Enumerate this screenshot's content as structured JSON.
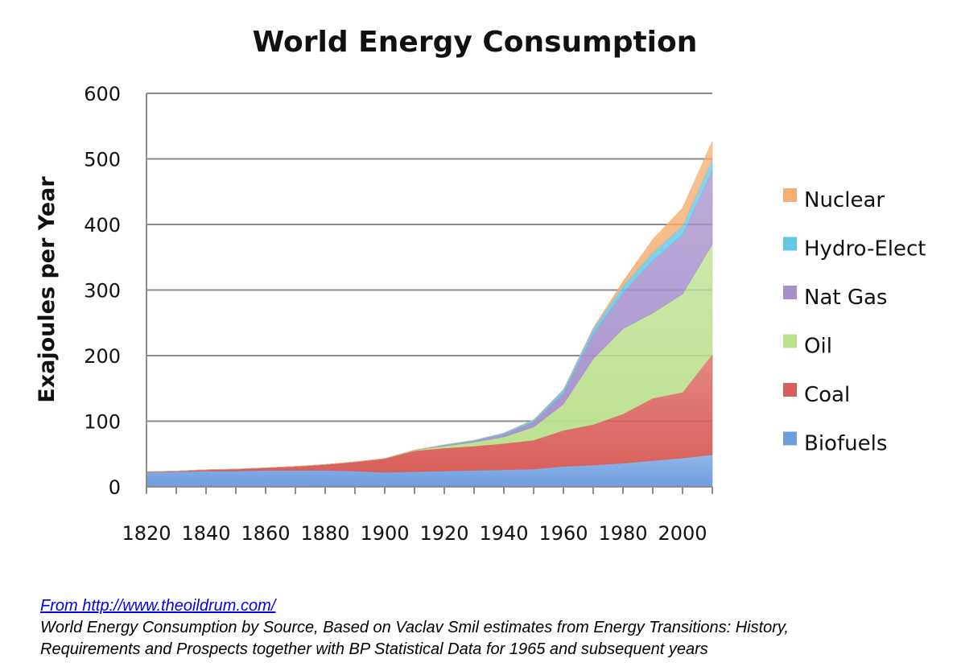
{
  "chart_data": {
    "type": "area",
    "stacked": true,
    "title": "World Energy Consumption",
    "xlabel": "",
    "ylabel": "Exajoules per Year",
    "xlim": [
      1820,
      2010
    ],
    "ylim": [
      0,
      600
    ],
    "yticks": [
      0,
      100,
      200,
      300,
      400,
      500,
      600
    ],
    "xticks": [
      1820,
      1840,
      1860,
      1880,
      1900,
      1920,
      1940,
      1960,
      1980,
      2000
    ],
    "grid": true,
    "legend_position": "right",
    "x": [
      1820,
      1830,
      1840,
      1850,
      1860,
      1870,
      1880,
      1890,
      1900,
      1910,
      1920,
      1930,
      1940,
      1950,
      1960,
      1970,
      1980,
      1990,
      2000,
      2010
    ],
    "series": [
      {
        "name": "Biofuels",
        "color": "#6e9de0",
        "values": [
          22,
          23,
          24,
          24,
          25,
          25,
          25,
          24,
          22,
          23,
          24,
          25,
          26,
          27,
          31,
          33,
          36,
          40,
          44,
          49
        ]
      },
      {
        "name": "Coal",
        "color": "#d9605a",
        "values": [
          1,
          1,
          2,
          3,
          4,
          6,
          9,
          14,
          21,
          32,
          35,
          37,
          40,
          44,
          55,
          62,
          75,
          95,
          100,
          153
        ]
      },
      {
        "name": "Oil",
        "color": "#bde08e",
        "values": [
          0,
          0,
          0,
          0,
          0,
          0,
          0,
          0,
          0,
          1,
          3,
          6,
          10,
          20,
          40,
          100,
          130,
          130,
          150,
          168
        ]
      },
      {
        "name": "Nat Gas",
        "color": "#a690cc",
        "values": [
          0,
          0,
          0,
          0,
          0,
          0,
          0,
          0,
          0,
          0,
          1,
          2,
          4,
          8,
          17,
          38,
          55,
          80,
          90,
          113
        ]
      },
      {
        "name": "Hydro-Elect",
        "color": "#63c8e5",
        "values": [
          0,
          0,
          0,
          0,
          0,
          0,
          0,
          0,
          0,
          0,
          1,
          1,
          2,
          3,
          5,
          8,
          10,
          12,
          14,
          16
        ]
      },
      {
        "name": "Nuclear",
        "color": "#f5ae73",
        "values": [
          0,
          0,
          0,
          0,
          0,
          0,
          0,
          0,
          0,
          0,
          0,
          0,
          0,
          0,
          0,
          1,
          7,
          20,
          27,
          28
        ]
      }
    ]
  },
  "caption": {
    "link_text": "From http://www.theoildrum.com/",
    "line1": "World Energy Consumption by Source, Based on Vaclav Smil estimates from Energy Transitions: History,",
    "line2": "Requirements and Prospects together with BP Statistical Data for 1965 and subsequent years"
  }
}
